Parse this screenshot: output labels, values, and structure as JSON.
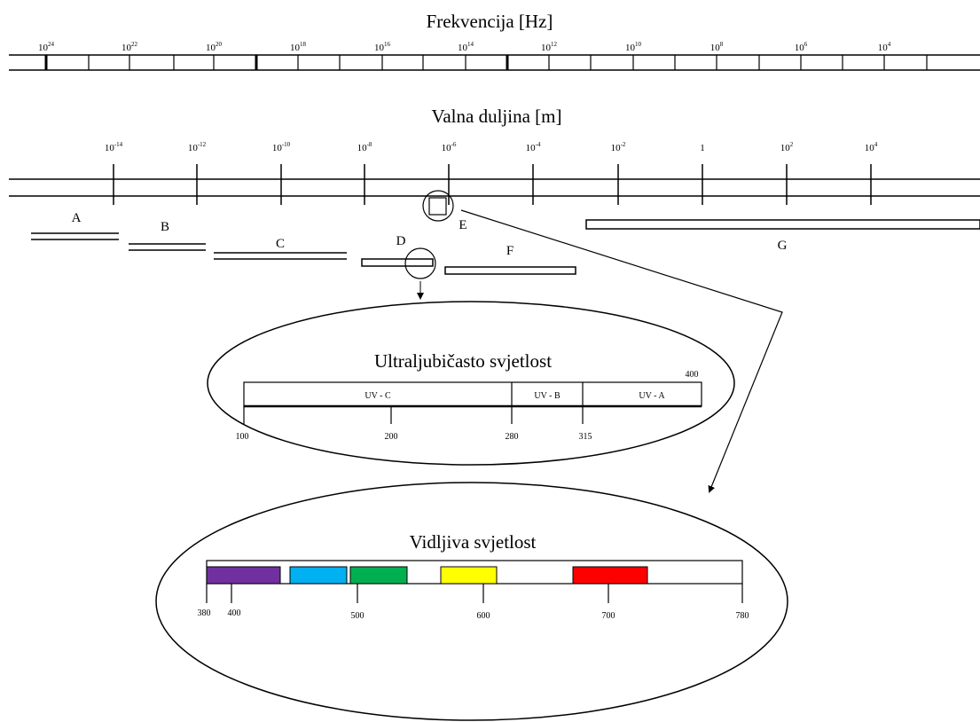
{
  "frequency": {
    "title": "Frekvencija [Hz]",
    "labels": [
      {
        "base": "10",
        "exp": "24"
      },
      {
        "base": "10",
        "exp": "22"
      },
      {
        "base": "10",
        "exp": "20"
      },
      {
        "base": "10",
        "exp": "18"
      },
      {
        "base": "10",
        "exp": "16"
      },
      {
        "base": "10",
        "exp": "14"
      },
      {
        "base": "10",
        "exp": "12"
      },
      {
        "base": "10",
        "exp": "10"
      },
      {
        "base": "10",
        "exp": "8"
      },
      {
        "base": "10",
        "exp": "6"
      },
      {
        "base": "10",
        "exp": "4"
      }
    ]
  },
  "wavelength": {
    "title": "Valna duljina [m]",
    "labels": [
      {
        "base": "10",
        "exp": "-14"
      },
      {
        "base": "10",
        "exp": "-12"
      },
      {
        "base": "10",
        "exp": "-10"
      },
      {
        "base": "10",
        "exp": "-8"
      },
      {
        "base": "10",
        "exp": "-6"
      },
      {
        "base": "10",
        "exp": "-4"
      },
      {
        "base": "10",
        "exp": "-2"
      },
      {
        "base": "1",
        "exp": ""
      },
      {
        "base": "10",
        "exp": "2"
      },
      {
        "base": "10",
        "exp": "4"
      }
    ]
  },
  "bands": {
    "a": "A",
    "b": "B",
    "c": "C",
    "d": "D",
    "e": "E",
    "f": "F",
    "g": "G"
  },
  "ultraviolet": {
    "title": "Ultraljubičasto svjetlost",
    "segments": [
      "UV - C",
      "UV - B",
      "UV - A"
    ],
    "ticks": [
      "100",
      "200",
      "280",
      "315"
    ],
    "end_label": "400"
  },
  "visible": {
    "title": "Vidljiva svjetlost",
    "ticks": [
      "380",
      "400",
      "500",
      "600",
      "700",
      "780"
    ],
    "colors": [
      {
        "name": "violet",
        "hex": "#7030a0"
      },
      {
        "name": "blue",
        "hex": "#00b0f0"
      },
      {
        "name": "green",
        "hex": "#00b050"
      },
      {
        "name": "yellow",
        "hex": "#ffff00"
      },
      {
        "name": "red",
        "hex": "#ff0000"
      }
    ]
  }
}
